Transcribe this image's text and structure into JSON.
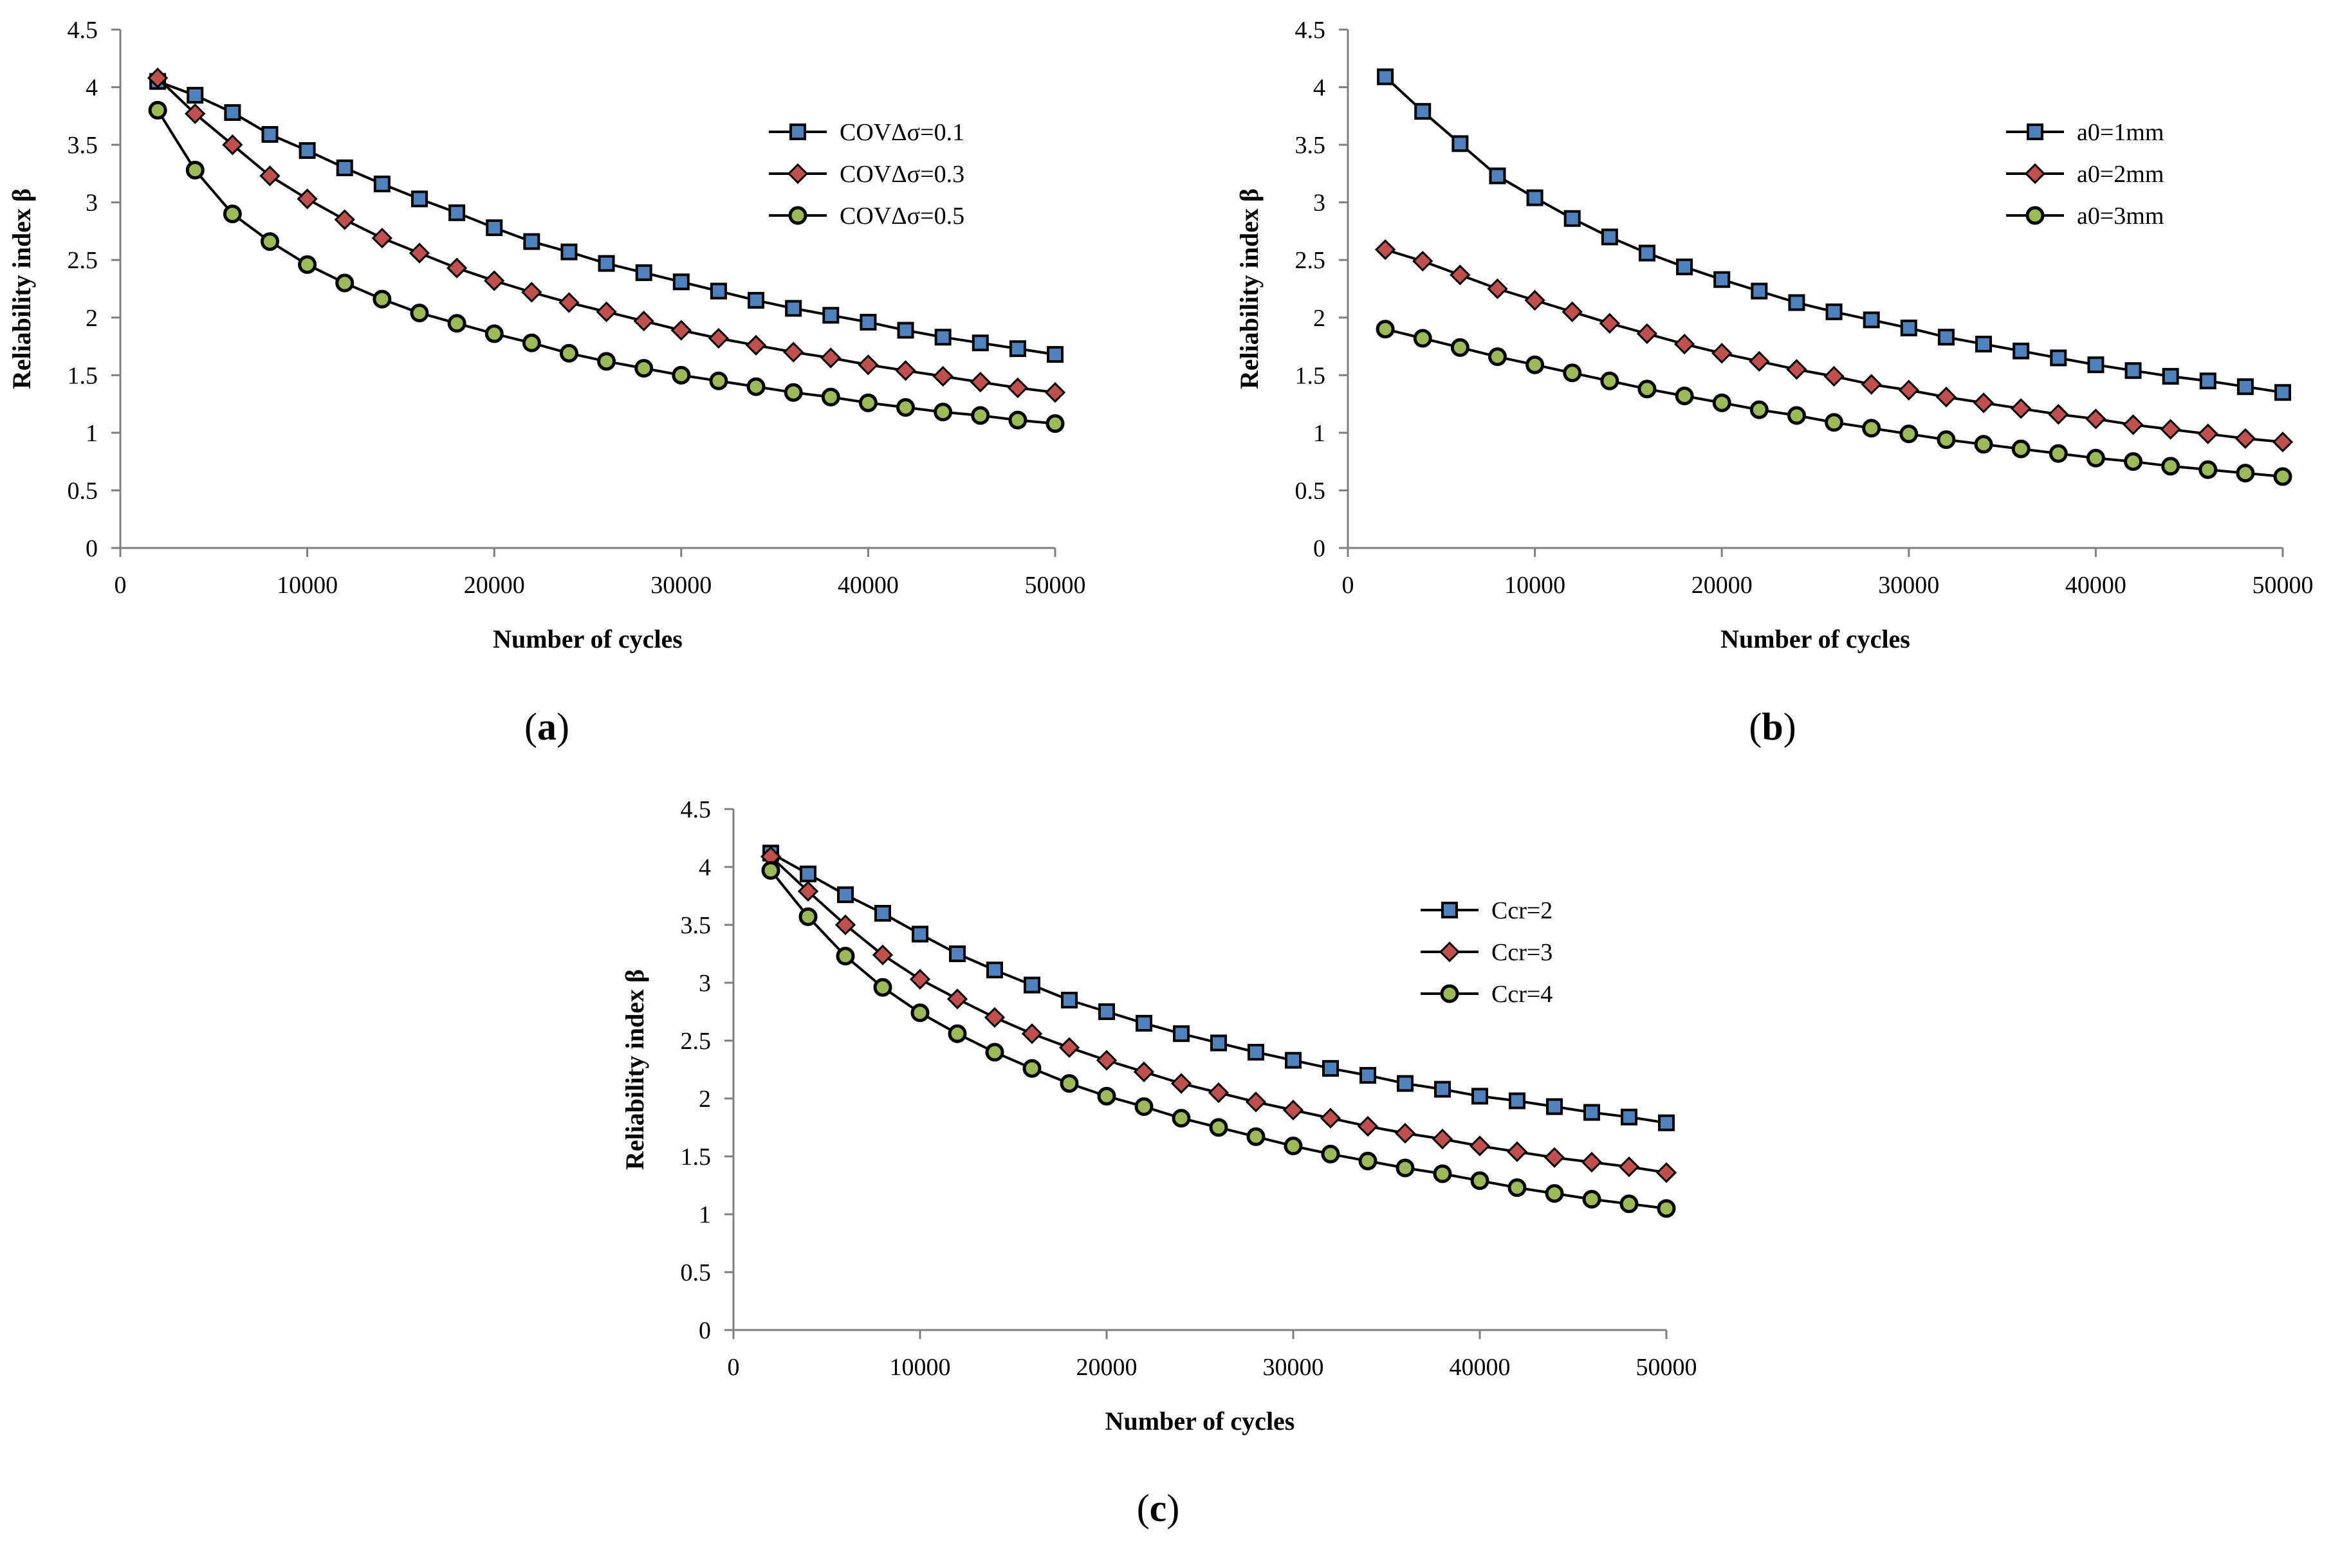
{
  "chart_data": [
    {
      "type": "line",
      "panel_label": "a",
      "title": "",
      "xlabel": "Number of cycles",
      "ylabel": "Reliability index β",
      "xlim": [
        0,
        50000
      ],
      "ylim": [
        0,
        4.5
      ],
      "x_ticks": [
        0,
        10000,
        20000,
        30000,
        40000,
        50000
      ],
      "y_ticks": [
        0,
        0.5,
        1,
        1.5,
        2,
        2.5,
        3,
        3.5,
        4,
        4.5
      ],
      "grid": false,
      "legend_position": "top-right",
      "x": [
        2000,
        4000,
        6000,
        8000,
        10000,
        12000,
        14000,
        16000,
        18000,
        20000,
        22000,
        24000,
        26000,
        28000,
        30000,
        32000,
        34000,
        36000,
        38000,
        40000,
        42000,
        44000,
        46000,
        48000,
        50000
      ],
      "series": [
        {
          "name": "COVΔσ=0.1",
          "marker": "square",
          "color": "#4f81bd",
          "values": [
            4.05,
            3.93,
            3.78,
            3.59,
            3.45,
            3.3,
            3.16,
            3.03,
            2.91,
            2.78,
            2.66,
            2.57,
            2.47,
            2.39,
            2.31,
            2.23,
            2.15,
            2.08,
            2.02,
            1.96,
            1.89,
            1.83,
            1.78,
            1.73,
            1.68
          ]
        },
        {
          "name": "COVΔσ=0.3",
          "marker": "diamond",
          "color": "#c0504d",
          "values": [
            4.08,
            3.77,
            3.5,
            3.23,
            3.03,
            2.85,
            2.69,
            2.56,
            2.43,
            2.32,
            2.22,
            2.13,
            2.05,
            1.97,
            1.89,
            1.82,
            1.76,
            1.7,
            1.65,
            1.59,
            1.54,
            1.49,
            1.44,
            1.39,
            1.35
          ]
        },
        {
          "name": "COVΔσ=0.5",
          "marker": "circle",
          "color": "#9bbb59",
          "values": [
            3.8,
            3.28,
            2.9,
            2.66,
            2.46,
            2.3,
            2.16,
            2.04,
            1.95,
            1.86,
            1.78,
            1.69,
            1.62,
            1.56,
            1.5,
            1.45,
            1.4,
            1.35,
            1.31,
            1.26,
            1.22,
            1.18,
            1.15,
            1.11,
            1.08
          ]
        }
      ]
    },
    {
      "type": "line",
      "panel_label": "b",
      "title": "",
      "xlabel": "Number of cycles",
      "ylabel": "Reliability index β",
      "xlim": [
        0,
        50000
      ],
      "ylim": [
        0,
        4.5
      ],
      "x_ticks": [
        0,
        10000,
        20000,
        30000,
        40000,
        50000
      ],
      "y_ticks": [
        0,
        0.5,
        1,
        1.5,
        2,
        2.5,
        3,
        3.5,
        4,
        4.5
      ],
      "grid": false,
      "legend_position": "top-right",
      "x": [
        2000,
        4000,
        6000,
        8000,
        10000,
        12000,
        14000,
        16000,
        18000,
        20000,
        22000,
        24000,
        26000,
        28000,
        30000,
        32000,
        34000,
        36000,
        38000,
        40000,
        42000,
        44000,
        46000,
        48000,
        50000
      ],
      "series": [
        {
          "name": "a0=1mm",
          "marker": "square",
          "color": "#4f81bd",
          "values": [
            4.09,
            3.79,
            3.51,
            3.23,
            3.04,
            2.86,
            2.7,
            2.56,
            2.44,
            2.33,
            2.23,
            2.13,
            2.05,
            1.98,
            1.91,
            1.83,
            1.77,
            1.71,
            1.65,
            1.59,
            1.54,
            1.49,
            1.45,
            1.4,
            1.35
          ]
        },
        {
          "name": "a0=2mm",
          "marker": "diamond",
          "color": "#c0504d",
          "values": [
            2.59,
            2.49,
            2.37,
            2.25,
            2.15,
            2.05,
            1.95,
            1.86,
            1.77,
            1.69,
            1.62,
            1.55,
            1.49,
            1.42,
            1.37,
            1.31,
            1.26,
            1.21,
            1.16,
            1.12,
            1.07,
            1.03,
            0.99,
            0.95,
            0.92
          ]
        },
        {
          "name": "a0=3mm",
          "marker": "circle",
          "color": "#9bbb59",
          "values": [
            1.9,
            1.82,
            1.74,
            1.66,
            1.59,
            1.52,
            1.45,
            1.38,
            1.32,
            1.26,
            1.2,
            1.15,
            1.09,
            1.04,
            0.99,
            0.94,
            0.9,
            0.86,
            0.82,
            0.78,
            0.75,
            0.71,
            0.68,
            0.65,
            0.62
          ]
        }
      ]
    },
    {
      "type": "line",
      "panel_label": "c",
      "title": "",
      "xlabel": "Number of cycles",
      "ylabel": "Reliability index β",
      "xlim": [
        0,
        50000
      ],
      "ylim": [
        0,
        4.5
      ],
      "x_ticks": [
        0,
        10000,
        20000,
        30000,
        40000,
        50000
      ],
      "y_ticks": [
        0,
        0.5,
        1,
        1.5,
        2,
        2.5,
        3,
        3.5,
        4,
        4.5
      ],
      "grid": false,
      "legend_position": "right",
      "x": [
        2000,
        4000,
        6000,
        8000,
        10000,
        12000,
        14000,
        16000,
        18000,
        20000,
        22000,
        24000,
        26000,
        28000,
        30000,
        32000,
        34000,
        36000,
        38000,
        40000,
        42000,
        44000,
        46000,
        48000,
        50000
      ],
      "series": [
        {
          "name": "Ccr=2",
          "marker": "square",
          "color": "#4f81bd",
          "values": [
            4.12,
            3.94,
            3.76,
            3.6,
            3.42,
            3.25,
            3.11,
            2.98,
            2.85,
            2.75,
            2.65,
            2.56,
            2.48,
            2.4,
            2.33,
            2.26,
            2.2,
            2.13,
            2.08,
            2.02,
            1.98,
            1.93,
            1.88,
            1.84,
            1.79
          ]
        },
        {
          "name": "Ccr=3",
          "marker": "diamond",
          "color": "#c0504d",
          "values": [
            4.09,
            3.79,
            3.5,
            3.24,
            3.03,
            2.86,
            2.7,
            2.56,
            2.44,
            2.33,
            2.23,
            2.13,
            2.05,
            1.97,
            1.9,
            1.83,
            1.76,
            1.7,
            1.65,
            1.59,
            1.54,
            1.49,
            1.45,
            1.41,
            1.36
          ]
        },
        {
          "name": "Ccr=4",
          "marker": "circle",
          "color": "#9bbb59",
          "values": [
            3.97,
            3.57,
            3.23,
            2.96,
            2.74,
            2.56,
            2.4,
            2.26,
            2.13,
            2.02,
            1.93,
            1.83,
            1.75,
            1.67,
            1.59,
            1.52,
            1.46,
            1.4,
            1.35,
            1.29,
            1.23,
            1.18,
            1.13,
            1.09,
            1.05
          ]
        }
      ]
    }
  ]
}
